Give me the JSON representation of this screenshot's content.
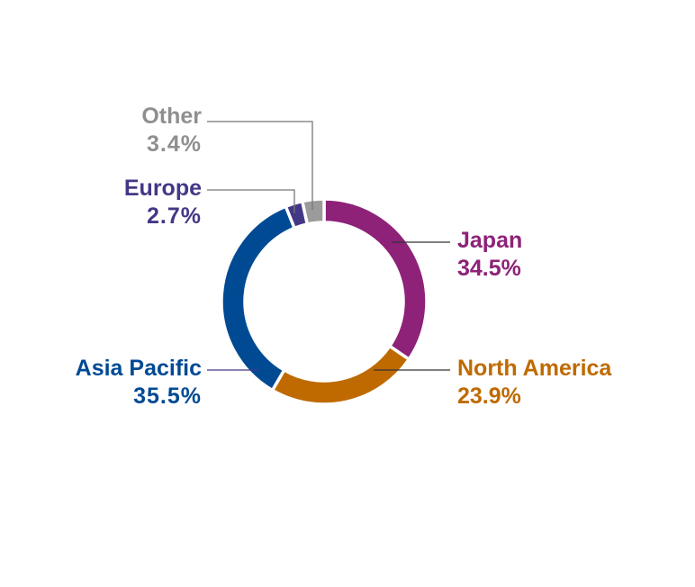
{
  "chart_data": {
    "type": "pie",
    "donut": true,
    "start": "top",
    "direction": "clockwise",
    "slices": [
      {
        "label": "Japan",
        "value": 34.5,
        "value_label": "34.5%",
        "color": "#8D2278"
      },
      {
        "label": "North America",
        "value": 23.9,
        "value_label": "23.9%",
        "color": "#BF6A00"
      },
      {
        "label": "Asia Pacific",
        "value": 35.5,
        "value_label": "35.5%",
        "color": "#004A94"
      },
      {
        "label": "Europe",
        "value": 2.7,
        "value_label": "2.7%",
        "color": "#433886"
      },
      {
        "label": "Other",
        "value": 3.4,
        "value_label": "3.4%",
        "color": "#9B9B9B"
      }
    ],
    "legend": "leader-line labels"
  }
}
